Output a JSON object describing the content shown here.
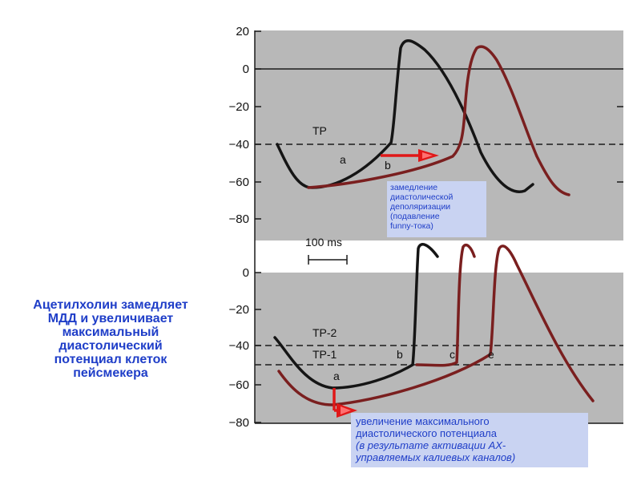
{
  "top_panel": {
    "y_ticks": [
      "20",
      "0",
      "−20",
      "−40",
      "−60",
      "−80"
    ],
    "threshold_label": "TP",
    "label_a": "a",
    "label_b": "b",
    "scale_bar_label": "100 ms"
  },
  "bottom_panel": {
    "y_ticks": [
      "0",
      "−20",
      "−40",
      "−60",
      "−80"
    ],
    "threshold2_label": "TP-2",
    "threshold1_label": "TP-1",
    "label_a": "a",
    "label_b": "b",
    "label_c": "c",
    "label_e": "e"
  },
  "caption": {
    "line1": "Ацетилхолин замедляет",
    "line2": "МДД  и увеличивает",
    "line3": "максимальный",
    "line4": "диастолический",
    "line5": "потенциал клеток",
    "line6": "пейсмекера"
  },
  "note_top": {
    "line1": "замедление",
    "line2": "диастолической",
    "line3": "деполяризации",
    "line4": "(подавление",
    "line5": "funny-тока)"
  },
  "note_bottom": {
    "line1": "увеличение максимального",
    "line2": "диастолического потенциала",
    "line3": "(в результате активации АХ-",
    "line4": "управляемых калиевых каналов)"
  },
  "colors": {
    "panel_bg": "#b8b8b8",
    "control_trace": "#151515",
    "acetylcholine_trace": "#7a1f1f",
    "arrow": "#e01818",
    "text_blue": "#1f3ec8",
    "note_bg": "#c9d3f2"
  }
}
